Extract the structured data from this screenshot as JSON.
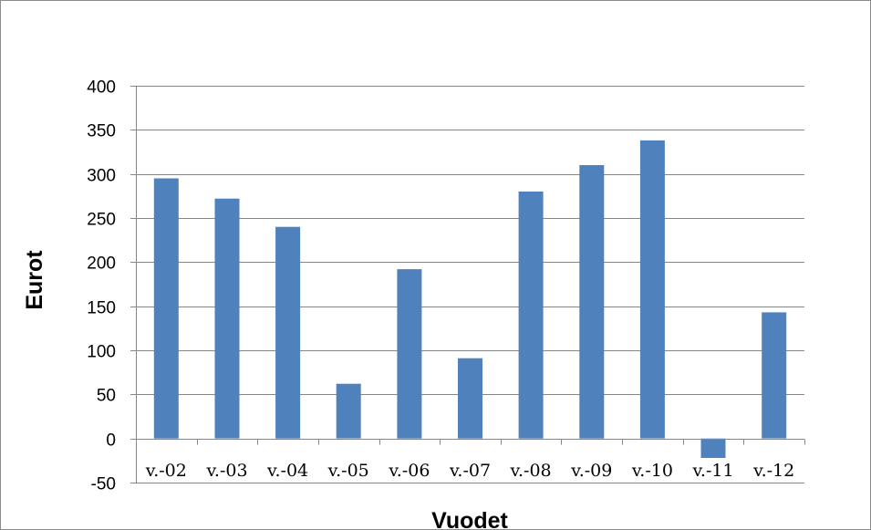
{
  "chart_data": {
    "type": "bar",
    "title": "",
    "xlabel": "Vuodet",
    "ylabel": "Eurot",
    "categories": [
      "v.-02",
      "v.-03",
      "v.-04",
      "v.-05",
      "v.-06",
      "v.-07",
      "v.-08",
      "v.-09",
      "v.-10",
      "v.-11",
      "v.-12"
    ],
    "values": [
      295,
      272,
      240,
      62,
      192,
      91,
      280,
      310,
      338,
      -22,
      143
    ],
    "ylim": [
      -50,
      400
    ],
    "yticks": [
      400,
      350,
      300,
      250,
      200,
      150,
      100,
      50,
      0,
      -50
    ],
    "grid": true,
    "legend": "none",
    "bar_color": "#4f81bd",
    "grid_color": "#868686"
  }
}
